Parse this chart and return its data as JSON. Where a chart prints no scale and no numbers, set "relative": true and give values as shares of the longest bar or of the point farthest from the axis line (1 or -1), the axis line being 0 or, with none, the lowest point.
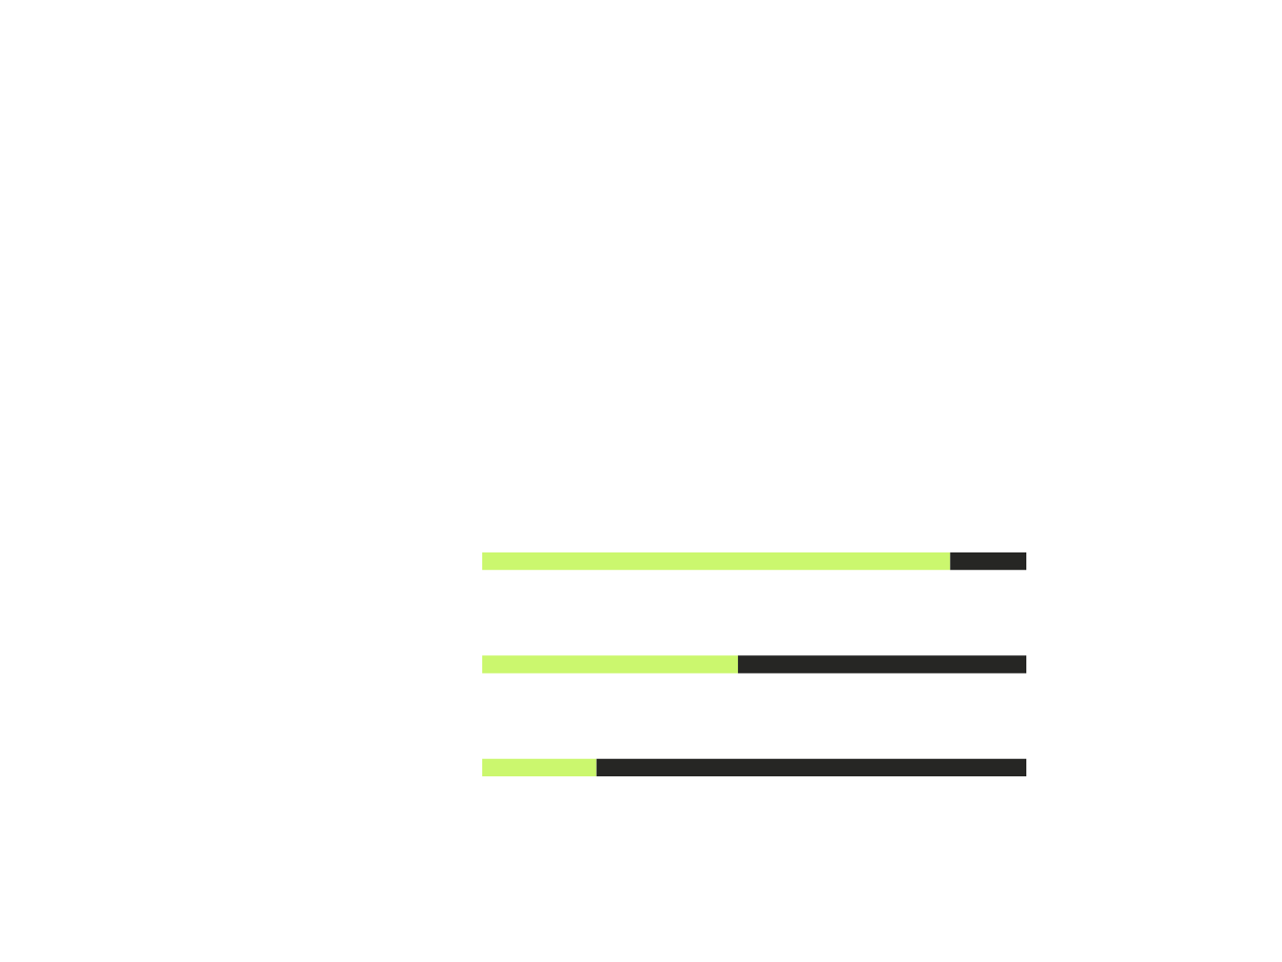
{
  "chart_data": {
    "type": "bar",
    "orientation": "horizontal",
    "stacked": true,
    "relative": true,
    "categories": [
      null,
      null,
      null
    ],
    "series": [
      {
        "color": "#cbf76e",
        "values": [
          0.86,
          0.47,
          0.21
        ]
      },
      {
        "color": "#262624",
        "values": [
          0.14,
          0.53,
          0.79
        ]
      }
    ],
    "grid": false,
    "legend": false
  }
}
